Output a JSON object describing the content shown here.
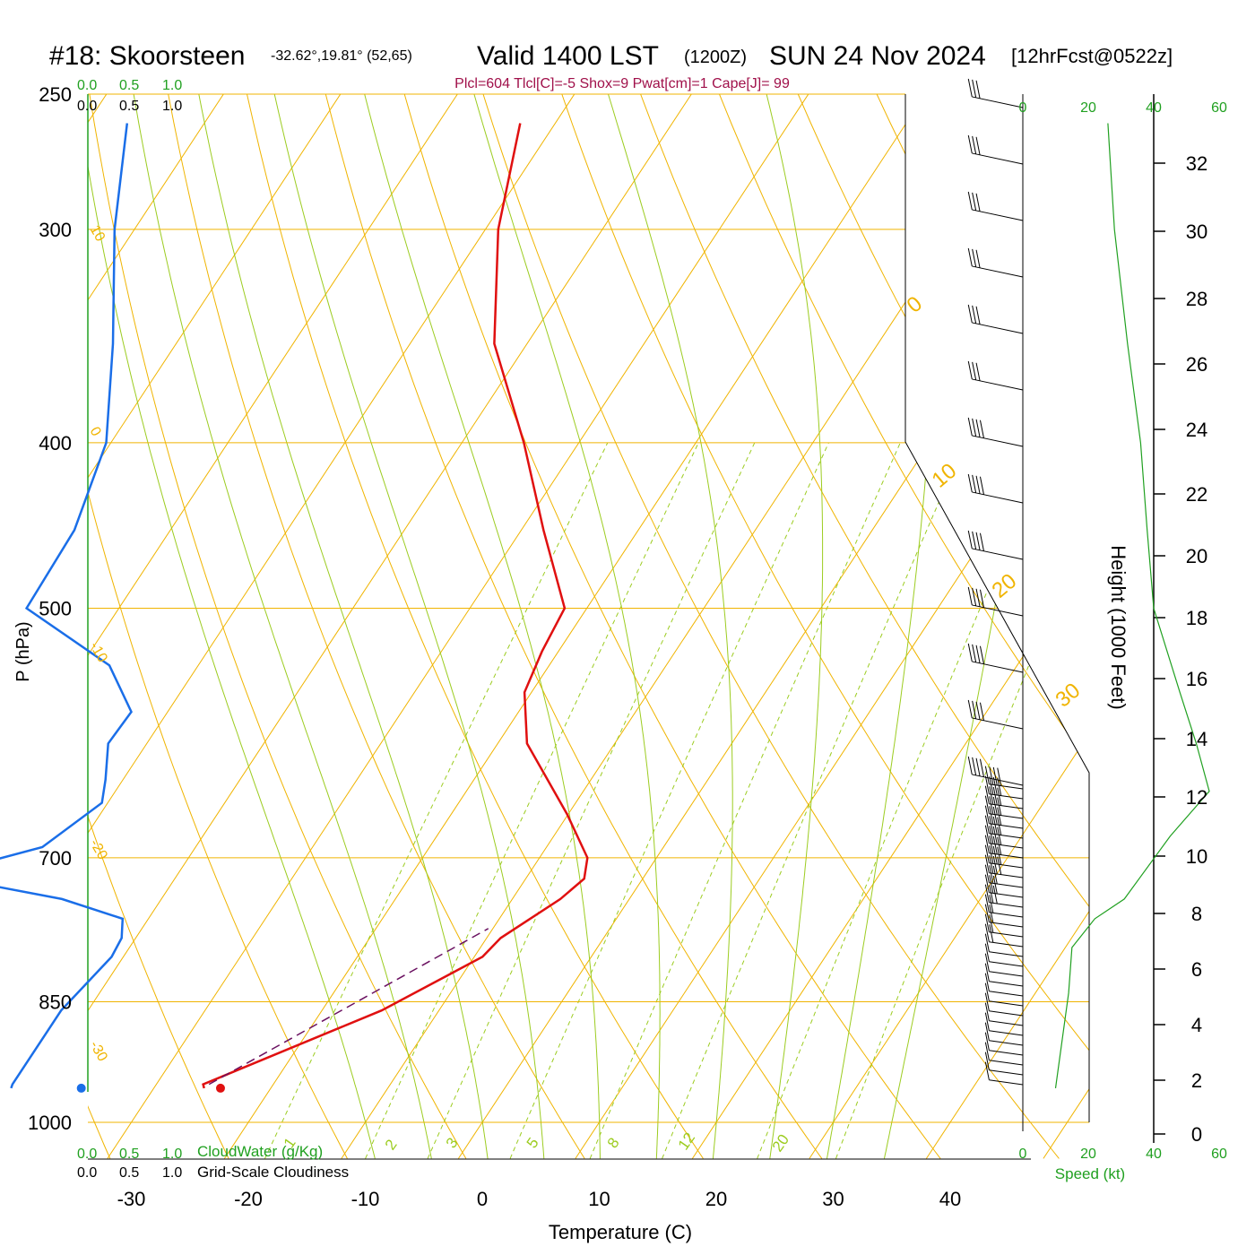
{
  "header": {
    "station": "#18: Skoorsteen",
    "coords": "-32.62°,19.81° (52,65)",
    "valid": "Valid 1400 LST",
    "utc": "(1200Z)",
    "date": "SUN 24 Nov 2024",
    "forecast": "[12hrFcst@0522z]",
    "indices": "Plcl=604 Tlcl[C]=-5 Shox=9 Pwat[cm]=1 Cape[J]= 99"
  },
  "colors": {
    "temperature": "#e01010",
    "dewpoint": "#1a6ee8",
    "isobar": "#f0b400",
    "dry_adiabat": "#f0b400",
    "moist_adiabat": "#9ccc20",
    "mixing_ratio": "#9ccc20",
    "wind_speed": "#20a020",
    "parcel": "#6a1060",
    "header_indices": "#a0104a"
  },
  "top_scale": {
    "cloudwater_ticks": [
      "0.0",
      "0.5",
      "1.0"
    ],
    "cloudiness_ticks": [
      "0.0",
      "0.5",
      "1.0"
    ]
  },
  "bottom_scale": {
    "cloudwater_ticks": [
      "0.0",
      "0.5",
      "1.0"
    ],
    "cloudwater_label": "CloudWater (g/Kg)",
    "cloudiness_ticks": [
      "0.0",
      "0.5",
      "1.0"
    ],
    "cloudiness_label": "Grid-Scale Cloudiness"
  },
  "chart_data": {
    "type": "line",
    "subtype": "skew-T log-P",
    "xlabel": "Temperature (C)",
    "ylabel": "P (hPa)",
    "right_label": "Height (1000 Feet)",
    "speed_label": "Speed (kt)",
    "pressure_ticks": [
      "250",
      "300",
      "400",
      "500",
      "700",
      "850",
      "1000"
    ],
    "temperature_ticks": [
      "-30",
      "-20",
      "-10",
      "0",
      "10",
      "20",
      "30",
      "40"
    ],
    "height_ticks": [
      "32",
      "30",
      "28",
      "26",
      "24",
      "22",
      "20",
      "18",
      "16",
      "14",
      "12",
      "10",
      "8",
      "6",
      "4",
      "2",
      "0"
    ],
    "speed_ticks_top": [
      "0",
      "20",
      "40",
      "60"
    ],
    "speed_ticks_bottom": [
      "0",
      "20",
      "40",
      "60"
    ],
    "dry_adiabat_labels": [
      "10",
      "0",
      "-10",
      "-20",
      "-30"
    ],
    "isotherm_labels": [
      "0",
      "10",
      "20",
      "30"
    ],
    "mixing_ratio_labels": [
      "1",
      "2",
      "3",
      "5",
      "8",
      "12",
      "20"
    ],
    "series": [
      {
        "name": "Temperature",
        "points": [
          [
            -25.7,
            955
          ],
          [
            -26.0,
            950
          ],
          [
            -14.9,
            860
          ],
          [
            -9.3,
            800
          ],
          [
            -8.8,
            780
          ],
          [
            -5.9,
            740
          ],
          [
            -5.0,
            720
          ],
          [
            -5.9,
            700
          ],
          [
            -10.1,
            660
          ],
          [
            -17.5,
            600
          ],
          [
            -20.6,
            560
          ],
          [
            -21.4,
            530
          ],
          [
            -21.9,
            500
          ],
          [
            -28.1,
            450
          ],
          [
            -34.7,
            400
          ],
          [
            -42.8,
            350
          ],
          [
            -48.9,
            300
          ],
          [
            -53.0,
            260
          ]
        ]
      },
      {
        "name": "Dewpoint",
        "points": [
          [
            -42.2,
            955
          ],
          [
            -42.3,
            950
          ],
          [
            -42.3,
            860
          ],
          [
            -41.0,
            800
          ],
          [
            -41.2,
            780
          ],
          [
            -42.2,
            760
          ],
          [
            -48.5,
            740
          ],
          [
            -58.8,
            720
          ],
          [
            -58.7,
            710
          ],
          [
            -53.1,
            690
          ],
          [
            -50.5,
            650
          ],
          [
            -51.5,
            630
          ],
          [
            -53.3,
            600
          ],
          [
            -53.1,
            575
          ],
          [
            -57.6,
            540
          ],
          [
            -67.9,
            500
          ],
          [
            -68.2,
            450
          ],
          [
            -70.4,
            400
          ],
          [
            -75.4,
            350
          ],
          [
            -81.7,
            300
          ],
          [
            -86.6,
            260
          ]
        ]
      },
      {
        "name": "Parcel",
        "points": [
          [
            -25.5,
            950
          ],
          [
            -10.4,
            770
          ]
        ]
      }
    ],
    "surface_markers": {
      "temperature": [
        -24.3,
        955
      ],
      "dewpoint": [
        -36.2,
        955
      ]
    },
    "wind_speed_profile": [
      [
        10,
        955
      ],
      [
        14,
        840
      ],
      [
        15,
        790
      ],
      [
        22,
        760
      ],
      [
        31,
        740
      ],
      [
        45,
        680
      ],
      [
        57,
        640
      ],
      [
        53,
        600
      ],
      [
        48,
        560
      ],
      [
        40,
        500
      ],
      [
        38,
        450
      ],
      [
        36,
        400
      ],
      [
        32,
        350
      ],
      [
        28,
        300
      ],
      [
        26,
        260
      ]
    ]
  }
}
